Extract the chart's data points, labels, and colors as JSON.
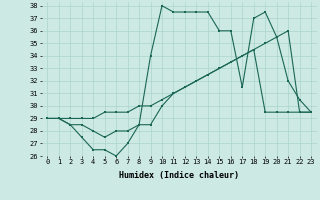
{
  "xlabel": "Humidex (Indice chaleur)",
  "xlim": [
    -0.5,
    23.5
  ],
  "ylim": [
    26,
    38.3
  ],
  "yticks": [
    26,
    27,
    28,
    29,
    30,
    31,
    32,
    33,
    34,
    35,
    36,
    37,
    38
  ],
  "xticks": [
    0,
    1,
    2,
    3,
    4,
    5,
    6,
    7,
    8,
    9,
    10,
    11,
    12,
    13,
    14,
    15,
    16,
    17,
    18,
    19,
    20,
    21,
    22,
    23
  ],
  "bg_color": "#cce9e4",
  "grid_color": "#aad4cc",
  "line_color": "#1a6655",
  "series": [
    [
      29.0,
      29.0,
      28.5,
      27.5,
      26.5,
      26.5,
      26.0,
      27.0,
      28.5,
      28.5,
      30.0,
      31.0,
      31.5,
      32.0,
      32.5,
      33.0,
      33.5,
      34.0,
      34.5,
      35.0,
      35.5,
      36.0,
      29.5,
      29.5
    ],
    [
      29.0,
      29.0,
      28.5,
      28.5,
      28.0,
      27.5,
      28.0,
      28.0,
      28.5,
      34.0,
      38.0,
      37.5,
      37.5,
      37.5,
      37.5,
      36.0,
      36.0,
      31.5,
      37.0,
      37.5,
      35.5,
      32.0,
      30.5,
      29.5
    ],
    [
      29.0,
      29.0,
      29.0,
      29.0,
      29.0,
      29.5,
      29.5,
      29.5,
      30.0,
      30.0,
      30.5,
      31.0,
      31.5,
      32.0,
      32.5,
      33.0,
      33.5,
      34.0,
      34.5,
      29.5,
      29.5,
      29.5,
      29.5,
      29.5
    ]
  ]
}
